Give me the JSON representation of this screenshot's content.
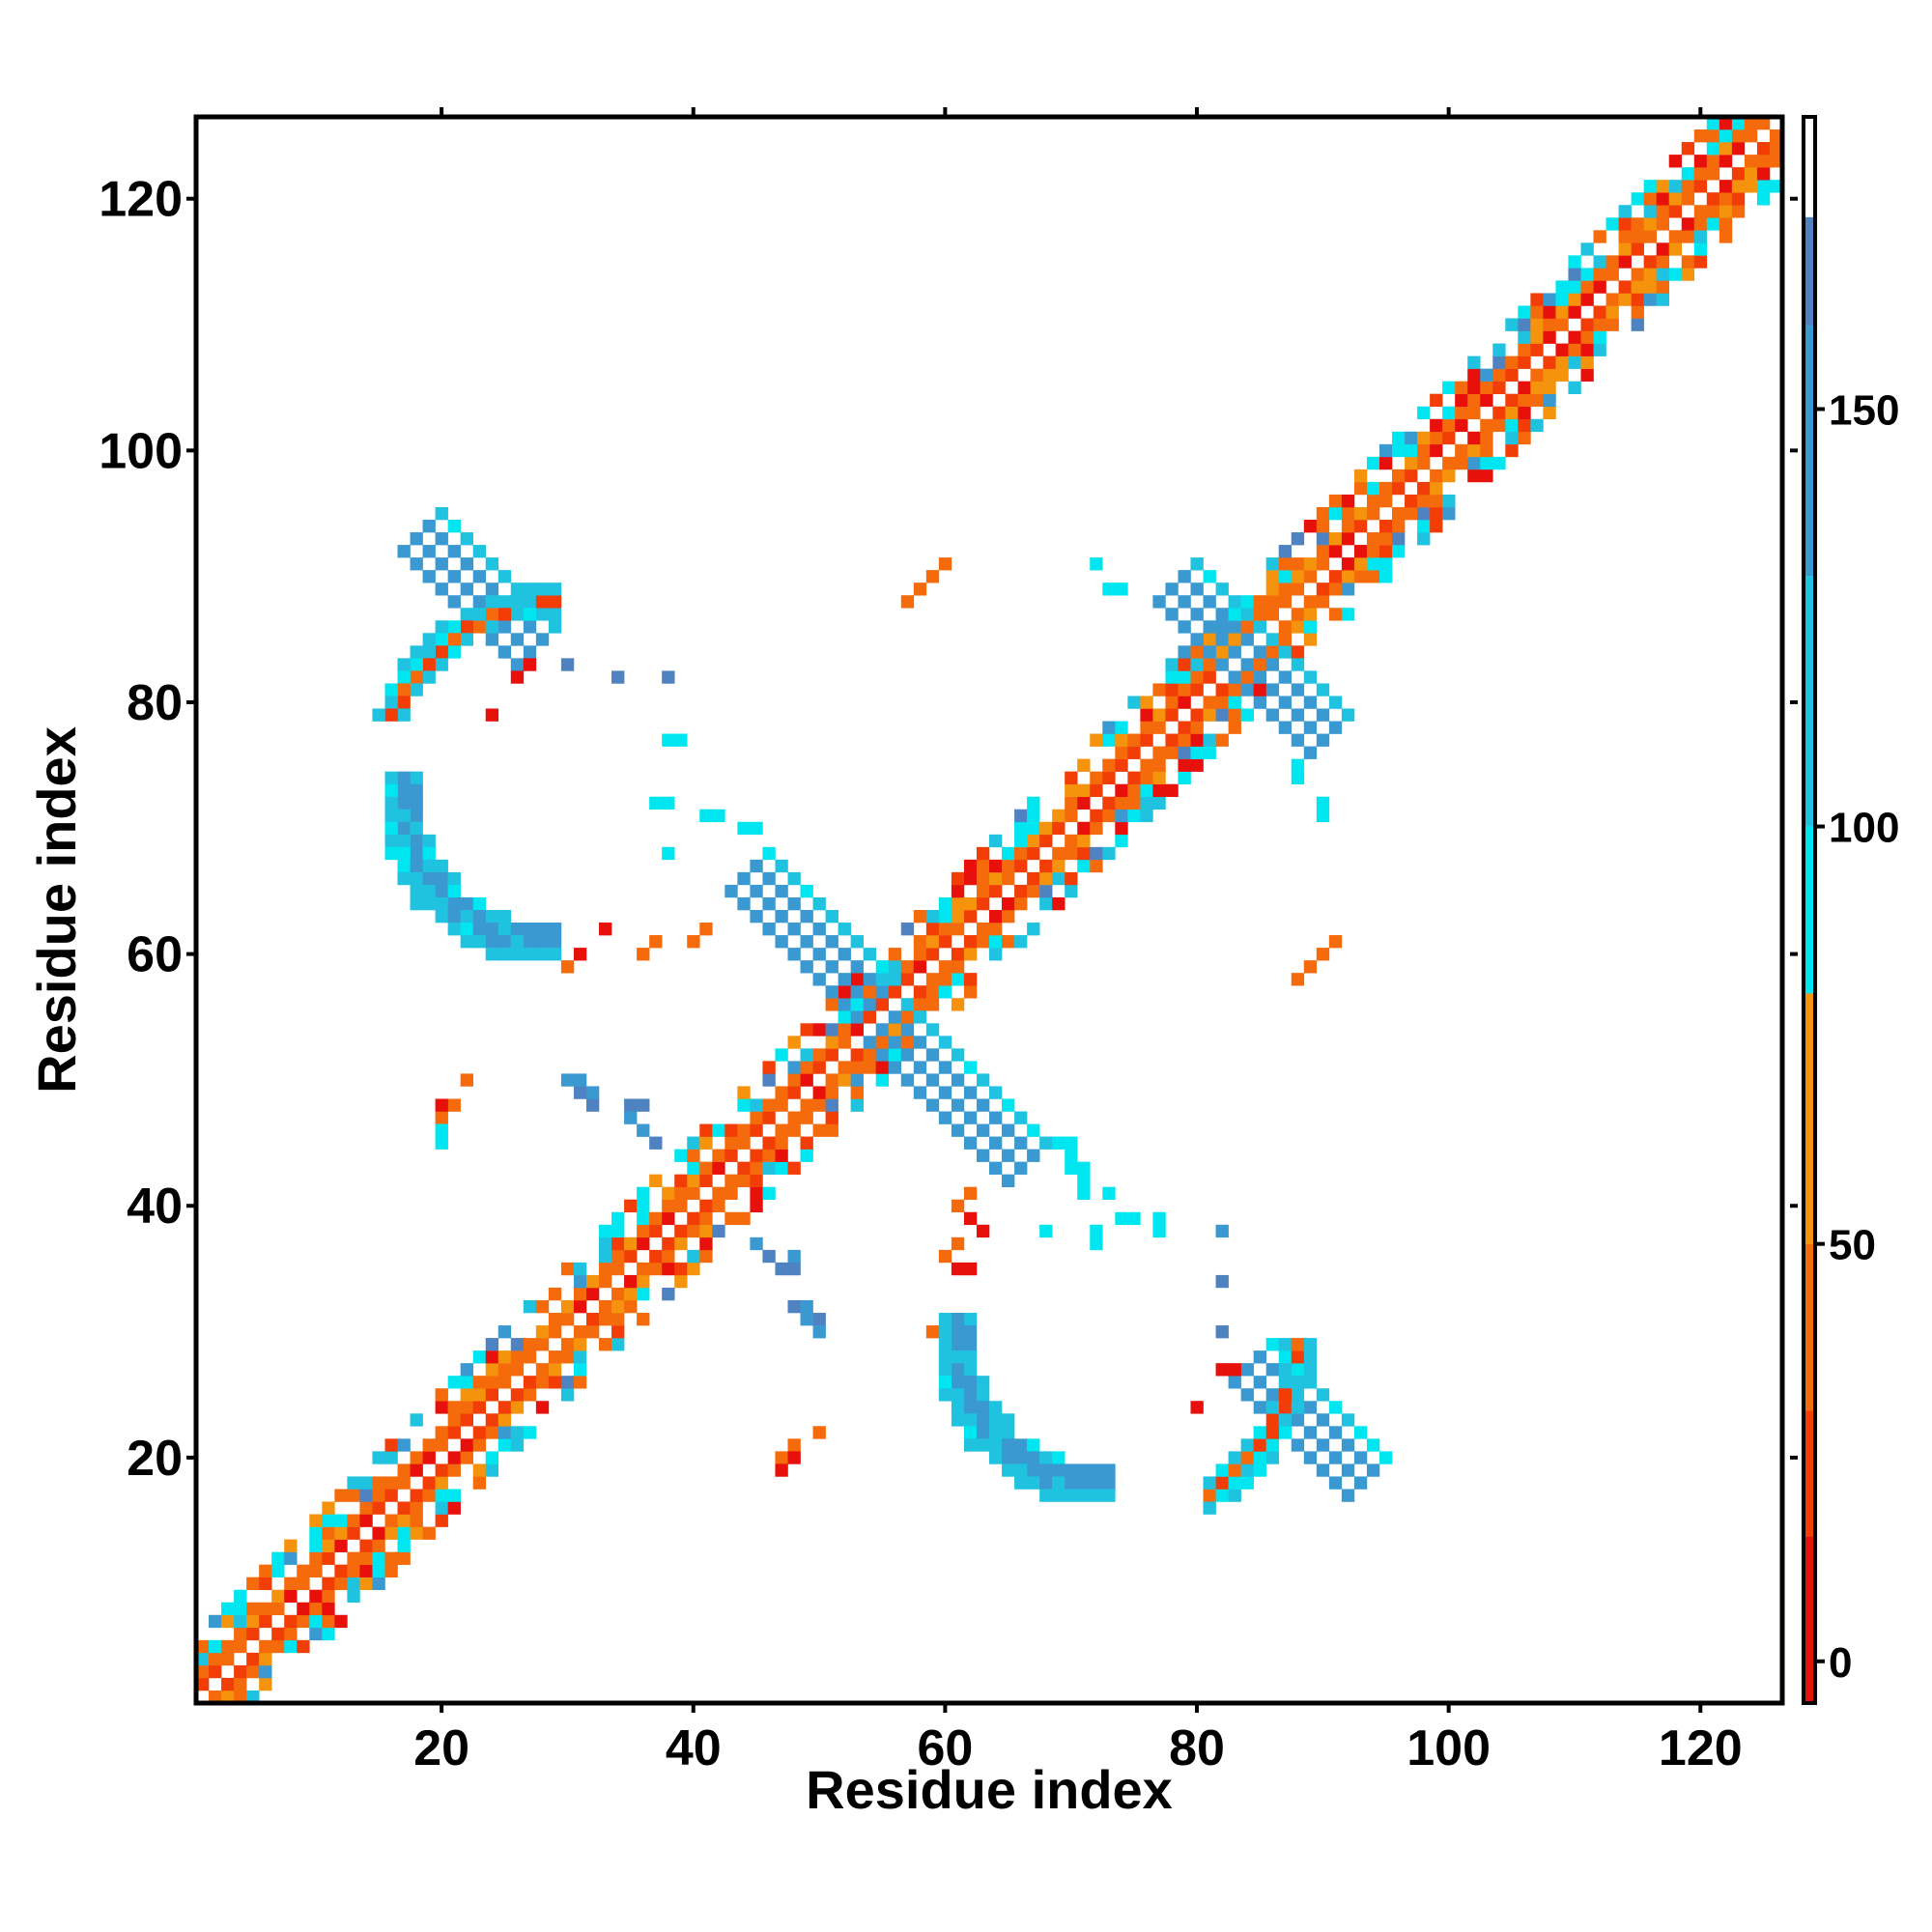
{
  "chart_data": {
    "type": "heatmap",
    "xlabel": "Residue index",
    "ylabel": "Residue index",
    "xlim": [
      1,
      126
    ],
    "ylim": [
      1,
      126
    ],
    "x_ticks": [
      20,
      40,
      60,
      80,
      100,
      120
    ],
    "y_ticks": [
      20,
      40,
      60,
      80,
      100,
      120
    ],
    "x_tick_labels": [
      "20",
      "40",
      "60",
      "80",
      "100",
      "120"
    ],
    "y_tick_labels": [
      "20",
      "40",
      "60",
      "80",
      "100",
      "120"
    ],
    "colorbar": {
      "range": [
        -5,
        185
      ],
      "ticks": [
        0,
        50,
        100,
        150
      ],
      "tick_labels": [
        "0",
        "50",
        "100",
        "150"
      ],
      "bands": [
        {
          "from": -5,
          "to": 15,
          "color": "#e8100a"
        },
        {
          "from": 15,
          "to": 30,
          "color": "#f23d07"
        },
        {
          "from": 30,
          "to": 50,
          "color": "#f56a0a"
        },
        {
          "from": 50,
          "to": 80,
          "color": "#f5930c"
        },
        {
          "from": 80,
          "to": 100,
          "color": "#00e6f0"
        },
        {
          "from": 100,
          "to": 130,
          "color": "#1fc3df"
        },
        {
          "from": 130,
          "to": 160,
          "color": "#3a99d0"
        },
        {
          "from": 160,
          "to": 173,
          "color": "#4f82c0"
        },
        {
          "from": 173,
          "to": 185,
          "color": "#ffffff"
        }
      ]
    },
    "diagonal_band": {
      "from": 1,
      "to": 126,
      "half_width": 5
    },
    "features": [
      {
        "type": "stripe",
        "x": [
          18,
          27
        ],
        "y": [
          93,
          84
        ],
        "w": 3,
        "value": 160
      },
      {
        "type": "stripe",
        "x": [
          84,
          93
        ],
        "y": [
          27,
          18
        ],
        "w": 3,
        "value": 160
      },
      {
        "type": "stripe",
        "x": [
          44,
          54
        ],
        "y": [
          66,
          56
        ],
        "w": 3,
        "value": 160
      },
      {
        "type": "stripe",
        "x": [
          55,
          66
        ],
        "y": [
          54,
          43
        ],
        "w": 3,
        "value": 160
      },
      {
        "type": "stripe",
        "x": [
          78,
          84
        ],
        "y": [
          89,
          83
        ],
        "w": 3,
        "value": 160
      },
      {
        "type": "stripe",
        "x": [
          84,
          90
        ],
        "y": [
          83,
          77
        ],
        "w": 3,
        "value": 160
      },
      {
        "type": "arc",
        "cx": 28,
        "cy": 72,
        "r": 11,
        "a0": 170,
        "a1": 275,
        "w": 2,
        "value": 150
      },
      {
        "type": "arc",
        "cx": 72,
        "cy": 29,
        "r": 11,
        "a0": 170,
        "a1": 275,
        "w": 2,
        "value": 150
      },
      {
        "type": "arc",
        "cx": 29,
        "cy": 74,
        "r": 14,
        "a0": 90,
        "a1": 160,
        "w": 1,
        "value": 40
      },
      {
        "type": "arc",
        "cx": 74,
        "cy": 29,
        "r": 14,
        "a0": 300,
        "a1": 360,
        "w": 1,
        "value": 40
      },
      {
        "type": "cells",
        "value": 35,
        "pts": [
          [
            59,
            90
          ],
          [
            60,
            91
          ],
          [
            58,
            89
          ],
          [
            57,
            88
          ],
          [
            90,
            60
          ],
          [
            91,
            61
          ],
          [
            89,
            59
          ],
          [
            88,
            58
          ],
          [
            40,
            61
          ],
          [
            41,
            62
          ],
          [
            36,
            60
          ],
          [
            37,
            61
          ],
          [
            30,
            59
          ],
          [
            61,
            40
          ],
          [
            62,
            41
          ],
          [
            60,
            36
          ],
          [
            61,
            37
          ],
          [
            59,
            30
          ],
          [
            20,
            47
          ],
          [
            21,
            48
          ],
          [
            22,
            50
          ],
          [
            47,
            20
          ],
          [
            48,
            21
          ],
          [
            50,
            22
          ]
        ]
      },
      {
        "type": "cells",
        "value": 10,
        "pts": [
          [
            26,
            82
          ],
          [
            27,
            83
          ],
          [
            24,
            79
          ],
          [
            62,
            39
          ],
          [
            63,
            38
          ],
          [
            61,
            35
          ],
          [
            62,
            35
          ],
          [
            82,
            27
          ],
          [
            83,
            27
          ],
          [
            80,
            24
          ],
          [
            33,
            62
          ],
          [
            31,
            60
          ],
          [
            47,
            19
          ],
          [
            48,
            20
          ],
          [
            20,
            48
          ]
        ]
      },
      {
        "type": "cells",
        "value": 90,
        "pts": [
          [
            38,
            77
          ],
          [
            39,
            77
          ],
          [
            37,
            72
          ],
          [
            38,
            72
          ],
          [
            41,
            71
          ],
          [
            42,
            71
          ],
          [
            44,
            70
          ],
          [
            45,
            70
          ],
          [
            38,
            68
          ],
          [
            77,
            38
          ],
          [
            77,
            39
          ],
          [
            72,
            37
          ],
          [
            72,
            38
          ],
          [
            71,
            41
          ],
          [
            71,
            42
          ],
          [
            70,
            44
          ],
          [
            70,
            45
          ],
          [
            68,
            38
          ],
          [
            72,
            91
          ],
          [
            73,
            89
          ],
          [
            74,
            89
          ],
          [
            88,
            74
          ],
          [
            88,
            75
          ],
          [
            90,
            71
          ],
          [
            90,
            72
          ],
          [
            20,
            45
          ],
          [
            20,
            46
          ],
          [
            69,
            45
          ],
          [
            70,
            43
          ],
          [
            71,
            43
          ],
          [
            73,
            41
          ],
          [
            74,
            39
          ],
          [
            75,
            39
          ],
          [
            77,
            38
          ]
        ]
      },
      {
        "type": "cells",
        "value": 160,
        "pts": [
          [
            30,
            83
          ],
          [
            34,
            82
          ],
          [
            38,
            82
          ],
          [
            30,
            50
          ],
          [
            31,
            49
          ],
          [
            35,
            48
          ],
          [
            36,
            48
          ],
          [
            37,
            45
          ],
          [
            46,
            36
          ],
          [
            47,
            35
          ],
          [
            48,
            32
          ],
          [
            49,
            32
          ],
          [
            50,
            31
          ],
          [
            82,
            30
          ],
          [
            82,
            34
          ],
          [
            82,
            38
          ],
          [
            50,
            30
          ],
          [
            49,
            31
          ],
          [
            48,
            35
          ],
          [
            48,
            36
          ],
          [
            45,
            37
          ],
          [
            36,
            46
          ],
          [
            35,
            47
          ],
          [
            32,
            48
          ],
          [
            32,
            49
          ],
          [
            31,
            50
          ]
        ]
      }
    ]
  }
}
